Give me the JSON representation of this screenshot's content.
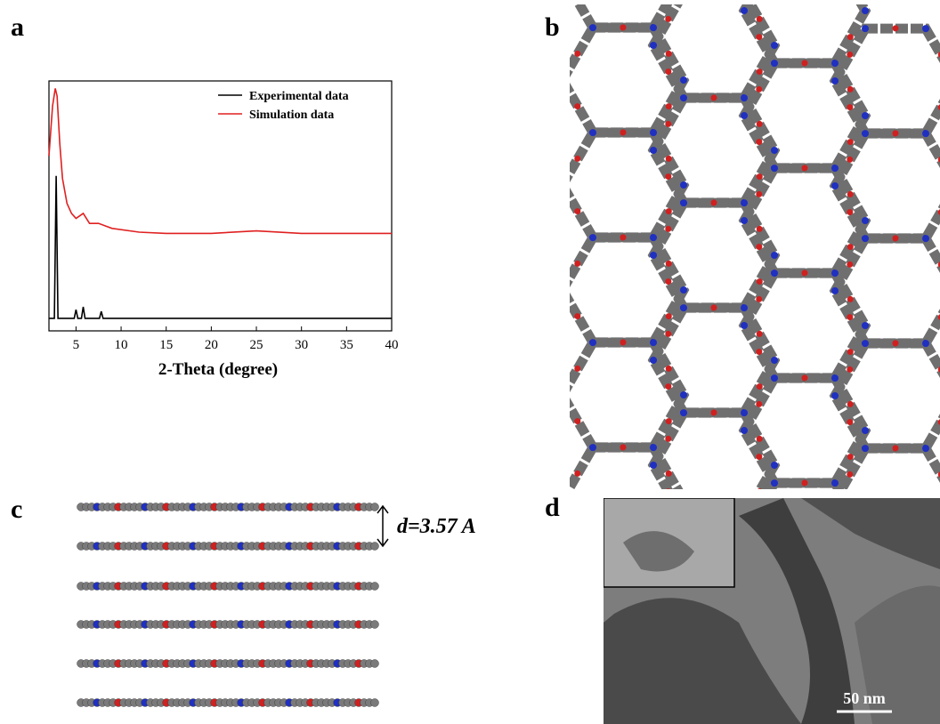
{
  "panels": [
    "a",
    "b",
    "c",
    "d"
  ],
  "interlayer_label": "d=3.57 A",
  "scale_bar": "50 nm",
  "chart_data": {
    "type": "line",
    "xlabel": "2-Theta (degree)",
    "xlim": [
      2,
      40
    ],
    "xticks": [
      5,
      10,
      15,
      20,
      25,
      30,
      35,
      40
    ],
    "ylim": [
      0,
      100
    ],
    "legend": "upper right",
    "series": [
      {
        "name": "Experimental data",
        "color": "#000000",
        "x": [
          2,
          2.6,
          2.8,
          3.0,
          4.8,
          5.0,
          5.2,
          5.6,
          5.8,
          6.0,
          7.6,
          7.8,
          8.0,
          40
        ],
        "values": [
          5,
          5,
          62,
          5,
          5,
          8.5,
          5,
          5,
          9.6,
          5,
          5,
          7.8,
          5,
          5
        ]
      },
      {
        "name": "Simulation data",
        "color": "#e02020",
        "x": [
          2,
          2.4,
          2.7,
          2.9,
          3.2,
          3.5,
          4,
          4.5,
          5,
          5.8,
          6.5,
          7.5,
          9,
          12,
          15,
          20,
          25,
          30,
          35,
          40
        ],
        "values": [
          70,
          90,
          97,
          94,
          75,
          61,
          51,
          47,
          45,
          47,
          43,
          43,
          41,
          39.5,
          39,
          39,
          40,
          39,
          39,
          39
        ]
      }
    ]
  }
}
